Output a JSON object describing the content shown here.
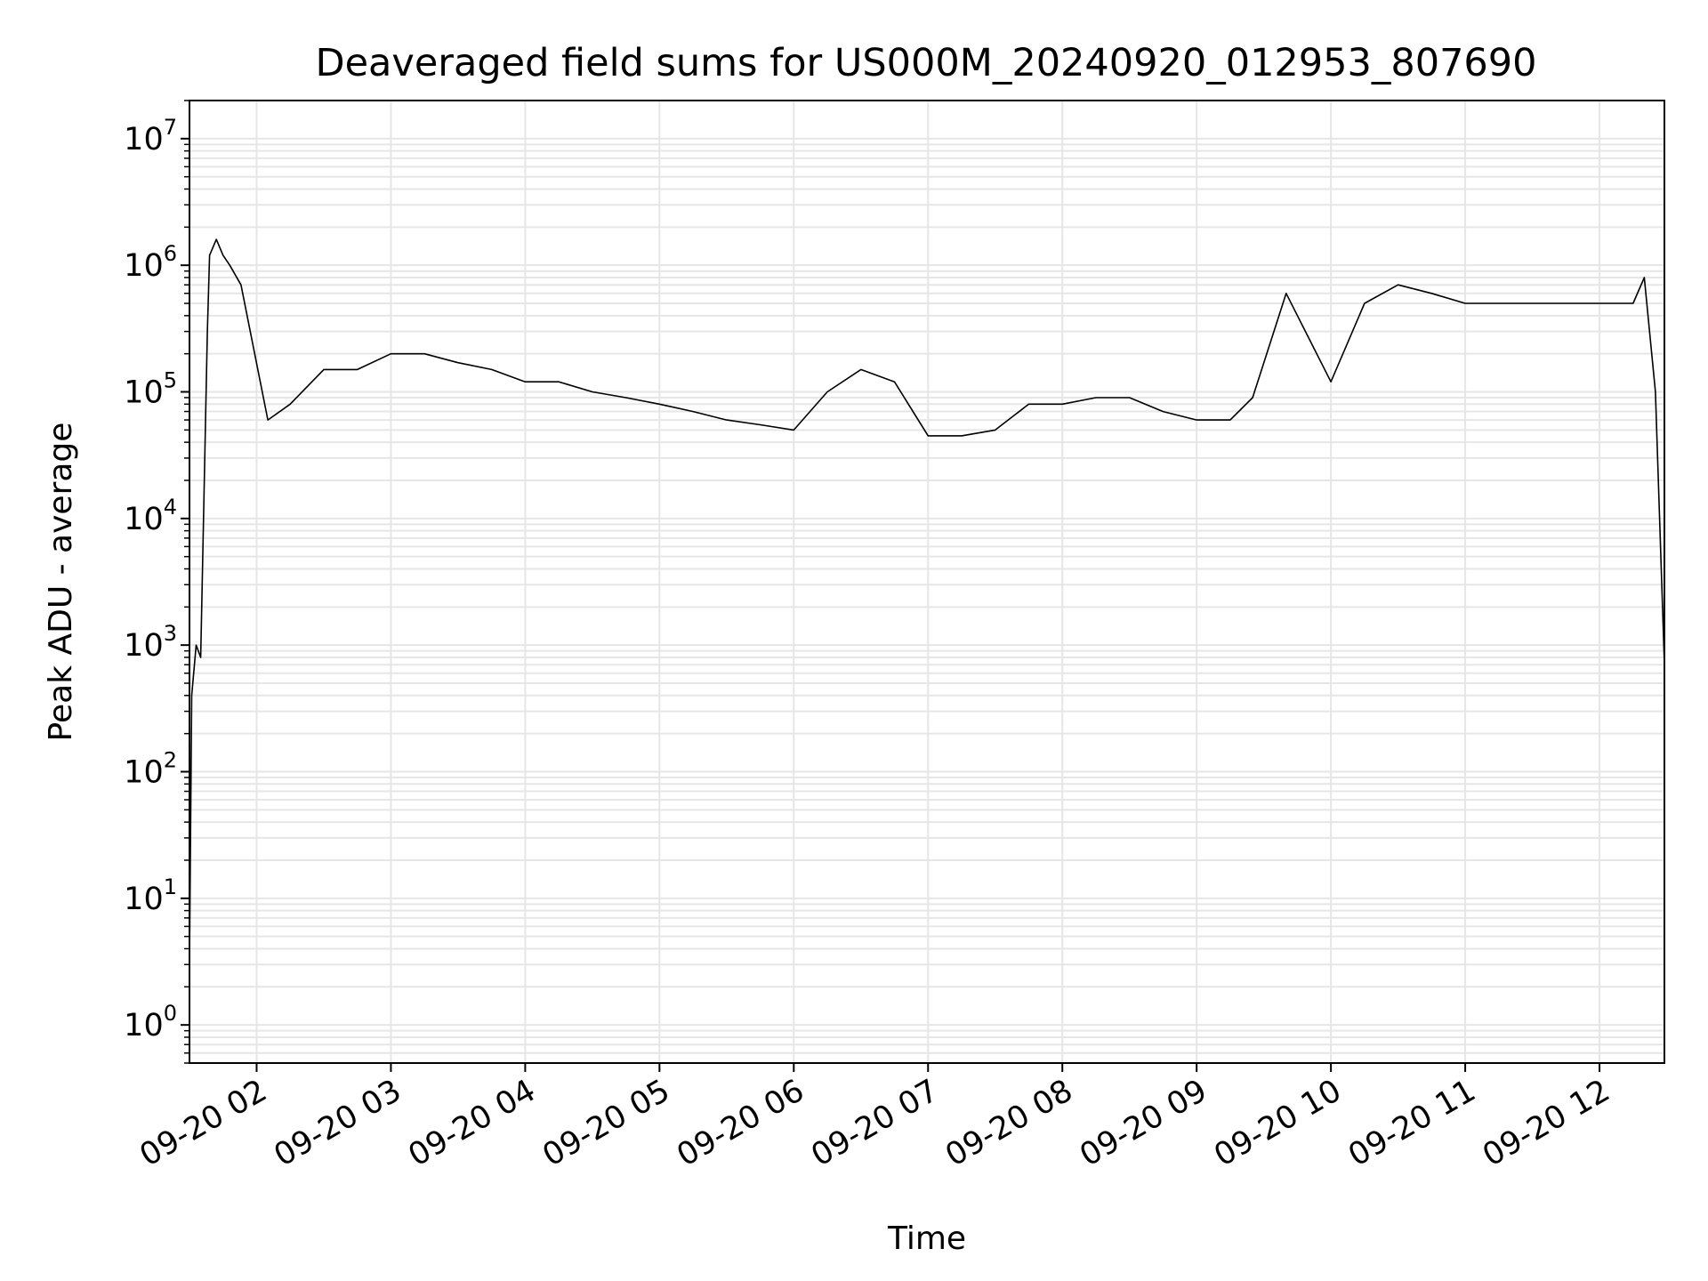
{
  "chart_data": {
    "type": "line",
    "title": "Deaveraged field sums for US000M_20240920_012953_807690",
    "xlabel": "Time",
    "ylabel": "Peak ADU - average",
    "yscale": "log",
    "ylim": [
      0.5,
      20000000
    ],
    "xlim": [
      "2024-09-20 01:30",
      "2024-09-20 12:29"
    ],
    "grid": true,
    "line_color": "#000000",
    "grid_color": "#e6e6e6",
    "x_ticks": [
      "09-20 02",
      "09-20 03",
      "09-20 04",
      "09-20 05",
      "09-20 06",
      "09-20 07",
      "09-20 08",
      "09-20 09",
      "09-20 10",
      "09-20 11",
      "09-20 12"
    ],
    "y_ticks": [
      {
        "base": "10",
        "exp": "0",
        "value": 1
      },
      {
        "base": "10",
        "exp": "1",
        "value": 10
      },
      {
        "base": "10",
        "exp": "2",
        "value": 100
      },
      {
        "base": "10",
        "exp": "3",
        "value": 1000
      },
      {
        "base": "10",
        "exp": "4",
        "value": 10000
      },
      {
        "base": "10",
        "exp": "5",
        "value": 100000
      },
      {
        "base": "10",
        "exp": "6",
        "value": 1000000
      },
      {
        "base": "10",
        "exp": "7",
        "value": 10000000
      }
    ],
    "series": [
      {
        "x": [
          "2024-09-20 01:30",
          "2024-09-20 01:31",
          "2024-09-20 01:33",
          "2024-09-20 01:35",
          "2024-09-20 01:38",
          "2024-09-20 01:39",
          "2024-09-20 01:42",
          "2024-09-20 01:45",
          "2024-09-20 01:48",
          "2024-09-20 01:53",
          "2024-09-20 02:05",
          "2024-09-20 02:15",
          "2024-09-20 02:30",
          "2024-09-20 02:45",
          "2024-09-20 03:00",
          "2024-09-20 03:15",
          "2024-09-20 03:30",
          "2024-09-20 03:45",
          "2024-09-20 04:00",
          "2024-09-20 04:15",
          "2024-09-20 04:30",
          "2024-09-20 04:45",
          "2024-09-20 05:00",
          "2024-09-20 05:15",
          "2024-09-20 05:30",
          "2024-09-20 05:45",
          "2024-09-20 06:00",
          "2024-09-20 06:15",
          "2024-09-20 06:30",
          "2024-09-20 06:45",
          "2024-09-20 07:00",
          "2024-09-20 07:15",
          "2024-09-20 07:30",
          "2024-09-20 07:45",
          "2024-09-20 08:00",
          "2024-09-20 08:15",
          "2024-09-20 08:30",
          "2024-09-20 08:45",
          "2024-09-20 09:00",
          "2024-09-20 09:15",
          "2024-09-20 09:25",
          "2024-09-20 09:40",
          "2024-09-20 10:00",
          "2024-09-20 10:15",
          "2024-09-20 10:30",
          "2024-09-20 10:45",
          "2024-09-20 11:00",
          "2024-09-20 11:15",
          "2024-09-20 11:30",
          "2024-09-20 11:45",
          "2024-09-20 12:00",
          "2024-09-20 12:15",
          "2024-09-20 12:20",
          "2024-09-20 12:25",
          "2024-09-20 12:29"
        ],
        "values": [
          3,
          400,
          1000,
          800,
          300000,
          1200000,
          1600000,
          1200000,
          1000000,
          700000,
          60000,
          80000,
          150000,
          150000,
          200000,
          200000,
          170000,
          150000,
          120000,
          120000,
          100000,
          90000,
          80000,
          70000,
          60000,
          55000,
          50000,
          100000,
          150000,
          120000,
          45000,
          45000,
          50000,
          80000,
          80000,
          90000,
          90000,
          70000,
          60000,
          60000,
          90000,
          600000,
          120000,
          500000,
          700000,
          600000,
          500000,
          500000,
          500000,
          500000,
          500000,
          500000,
          800000,
          100000,
          700
        ]
      }
    ]
  }
}
